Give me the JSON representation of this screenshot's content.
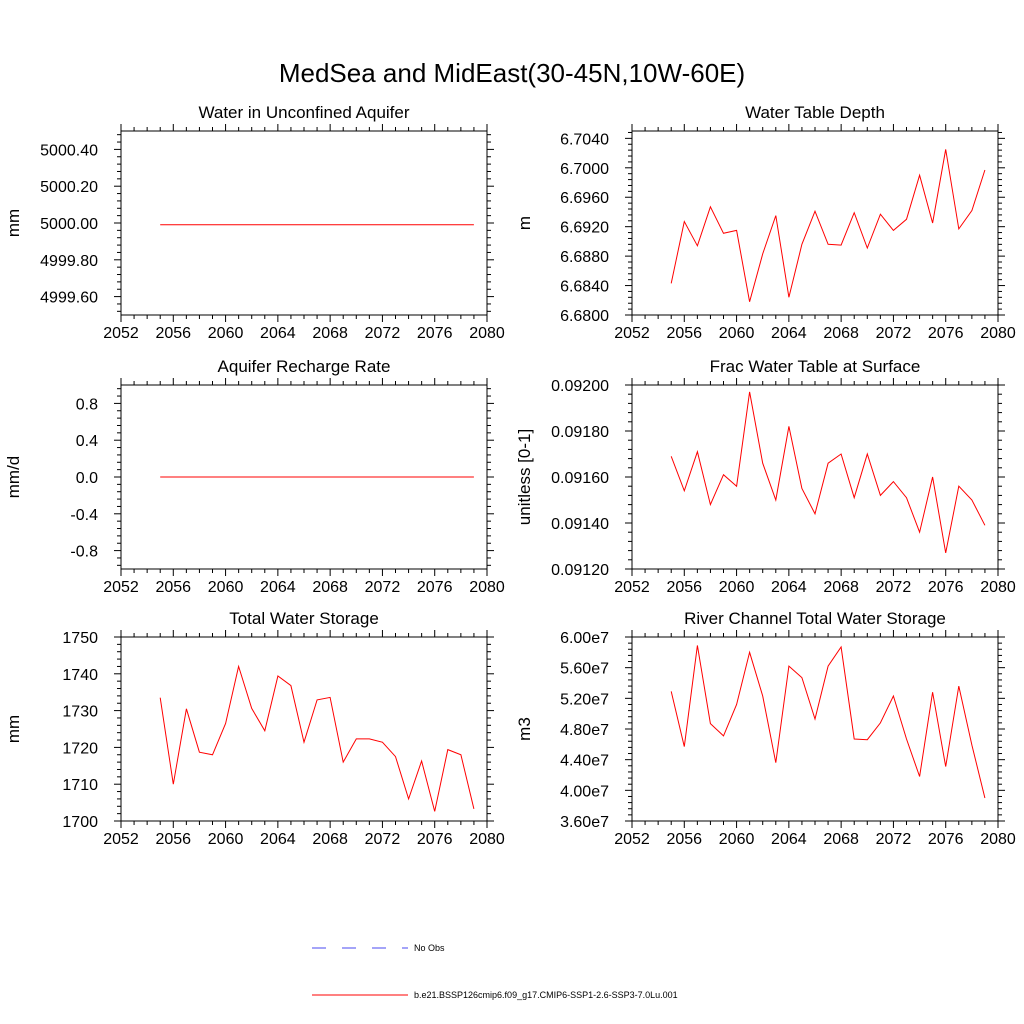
{
  "title": "MedSea and MidEast(30-45N,10W-60E)",
  "legend": [
    {
      "label": "No Obs",
      "color": "#4a4af0",
      "dash": true
    },
    {
      "label": "b.e21.BSSP126cmip6.f09_g17.CMIP6-SSP1-2.6-SSP3-7.0Lu.001",
      "color": "#ff0000",
      "dash": false
    }
  ],
  "chart_data": [
    {
      "type": "line",
      "title": "Water in Unconfined Aquifer",
      "ylabel": "mm",
      "xlim": [
        2052,
        2080
      ],
      "ylim": [
        4999.5,
        5000.5
      ],
      "xticks": [
        2052,
        2056,
        2060,
        2064,
        2068,
        2072,
        2076,
        2080
      ],
      "yticks": [
        "4999.60",
        "5000.40",
        "5000.20",
        "5000.00",
        "4999.80"
      ],
      "yticks_values": [
        4999.6,
        5000.4,
        5000.2,
        5000.0,
        4999.8
      ],
      "x": [
        2055,
        2056,
        2057,
        2058,
        2059,
        2060,
        2061,
        2062,
        2063,
        2064,
        2065,
        2066,
        2067,
        2068,
        2069,
        2070,
        2071,
        2072,
        2073,
        2074,
        2075,
        2076,
        2077,
        2078,
        2079
      ],
      "series": [
        {
          "values": [
            4999.99,
            4999.99,
            4999.99,
            4999.99,
            4999.99,
            4999.99,
            4999.99,
            4999.99,
            4999.99,
            4999.99,
            4999.99,
            4999.99,
            4999.99,
            4999.99,
            4999.99,
            4999.99,
            4999.99,
            4999.99,
            4999.99,
            4999.99,
            4999.99,
            4999.99,
            4999.99,
            4999.99,
            4999.99
          ]
        }
      ]
    },
    {
      "type": "line",
      "title": "Water Table Depth",
      "ylabel": "m",
      "xlim": [
        2052,
        2080
      ],
      "ylim": [
        6.68,
        6.705
      ],
      "xticks": [
        2052,
        2056,
        2060,
        2064,
        2068,
        2072,
        2076,
        2080
      ],
      "yticks": [
        "6.6800",
        "6.6840",
        "6.6880",
        "6.6920",
        "6.6960",
        "6.7000",
        "6.7040"
      ],
      "yticks_values": [
        6.68,
        6.684,
        6.688,
        6.692,
        6.696,
        6.7,
        6.704
      ],
      "x": [
        2055,
        2056,
        2057,
        2058,
        2059,
        2060,
        2061,
        2062,
        2063,
        2064,
        2065,
        2066,
        2067,
        2068,
        2069,
        2070,
        2071,
        2072,
        2073,
        2074,
        2075,
        2076,
        2077,
        2078,
        2079
      ],
      "series": [
        {
          "values": [
            6.6843,
            6.6927,
            6.6894,
            6.6947,
            6.6911,
            6.6915,
            6.6818,
            6.6883,
            6.6935,
            6.6824,
            6.6896,
            6.6941,
            6.6896,
            6.6895,
            6.6939,
            6.6891,
            6.6937,
            6.6915,
            6.693,
            6.699,
            6.6925,
            6.7025,
            6.6917,
            6.6942,
            6.6997
          ]
        }
      ]
    },
    {
      "type": "line",
      "title": "Aquifer Recharge Rate",
      "ylabel": "mm/d",
      "xlim": [
        2052,
        2080
      ],
      "ylim": [
        -1.0,
        1.0
      ],
      "xticks": [
        2052,
        2056,
        2060,
        2064,
        2068,
        2072,
        2076,
        2080
      ],
      "yticks": [
        "-0.8",
        "-0.4",
        "0.0",
        "0.4",
        "0.8"
      ],
      "yticks_values": [
        -0.8,
        -0.4,
        0.0,
        0.4,
        0.8
      ],
      "x": [
        2055,
        2056,
        2057,
        2058,
        2059,
        2060,
        2061,
        2062,
        2063,
        2064,
        2065,
        2066,
        2067,
        2068,
        2069,
        2070,
        2071,
        2072,
        2073,
        2074,
        2075,
        2076,
        2077,
        2078,
        2079
      ],
      "series": [
        {
          "values": [
            0,
            0,
            0,
            0,
            0,
            0,
            0,
            0,
            0,
            0,
            0,
            0,
            0,
            0,
            0,
            0,
            0,
            0,
            0,
            0,
            0,
            0,
            0,
            0,
            0
          ]
        }
      ]
    },
    {
      "type": "line",
      "title": "Frac Water Table at Surface",
      "ylabel": "unitless [0-1]",
      "xlim": [
        2052,
        2080
      ],
      "ylim": [
        0.0912,
        0.092
      ],
      "xticks": [
        2052,
        2056,
        2060,
        2064,
        2068,
        2072,
        2076,
        2080
      ],
      "yticks": [
        "0.09120",
        "0.09140",
        "0.09160",
        "0.09180",
        "0.09200"
      ],
      "yticks_values": [
        0.0912,
        0.0914,
        0.0916,
        0.0918,
        0.092
      ],
      "x": [
        2055,
        2056,
        2057,
        2058,
        2059,
        2060,
        2061,
        2062,
        2063,
        2064,
        2065,
        2066,
        2067,
        2068,
        2069,
        2070,
        2071,
        2072,
        2073,
        2074,
        2075,
        2076,
        2077,
        2078,
        2079
      ],
      "series": [
        {
          "values": [
            0.09169,
            0.09154,
            0.09171,
            0.09148,
            0.09161,
            0.09156,
            0.09197,
            0.09166,
            0.0915,
            0.09182,
            0.09155,
            0.09144,
            0.09166,
            0.0917,
            0.09151,
            0.0917,
            0.09152,
            0.09158,
            0.09151,
            0.09136,
            0.0916,
            0.09127,
            0.09156,
            0.0915,
            0.09139
          ]
        }
      ]
    },
    {
      "type": "line",
      "title": "Total Water Storage",
      "ylabel": "mm",
      "xlim": [
        2052,
        2080
      ],
      "ylim": [
        1700,
        1750
      ],
      "xticks": [
        2052,
        2056,
        2060,
        2064,
        2068,
        2072,
        2076,
        2080
      ],
      "yticks": [
        "1700",
        "1710",
        "1720",
        "1730",
        "1740",
        "1750"
      ],
      "yticks_values": [
        1700,
        1710,
        1720,
        1730,
        1740,
        1750
      ],
      "x": [
        2055,
        2056,
        2057,
        2058,
        2059,
        2060,
        2061,
        2062,
        2063,
        2064,
        2065,
        2066,
        2067,
        2068,
        2069,
        2070,
        2071,
        2072,
        2073,
        2074,
        2075,
        2076,
        2077,
        2078,
        2079
      ],
      "series": [
        {
          "values": [
            1733.5,
            1710.0,
            1730.5,
            1718.7,
            1718.0,
            1726.5,
            1742.0,
            1730.6,
            1724.5,
            1739.4,
            1736.8,
            1721.4,
            1732.9,
            1733.6,
            1716.0,
            1722.3,
            1722.3,
            1721.4,
            1717.5,
            1706.0,
            1716.3,
            1702.6,
            1719.4,
            1718.0,
            1703.3
          ]
        }
      ]
    },
    {
      "type": "line",
      "title": "River Channel Total Water Storage",
      "ylabel": "m3",
      "xlim": [
        2052,
        2080
      ],
      "ylim": [
        36000000,
        60000000
      ],
      "xticks": [
        2052,
        2056,
        2060,
        2064,
        2068,
        2072,
        2076,
        2080
      ],
      "yticks": [
        "3.60e7",
        "4.00e7",
        "4.40e7",
        "4.80e7",
        "5.20e7",
        "5.60e7",
        "6.00e7"
      ],
      "yticks_values": [
        36000000,
        40000000,
        44000000,
        48000000,
        52000000,
        56000000,
        60000000
      ],
      "x": [
        2055,
        2056,
        2057,
        2058,
        2059,
        2060,
        2061,
        2062,
        2063,
        2064,
        2065,
        2066,
        2067,
        2068,
        2069,
        2070,
        2071,
        2072,
        2073,
        2074,
        2075,
        2076,
        2077,
        2078,
        2079
      ],
      "series": [
        {
          "values": [
            52900000,
            45700000,
            58900000,
            48700000,
            47100000,
            51200000,
            58000000,
            52300000,
            43600000,
            56200000,
            54700000,
            49300000,
            56200000,
            58700000,
            46700000,
            46600000,
            48800000,
            52300000,
            46700000,
            41800000,
            52800000,
            43100000,
            53600000,
            45900000,
            39000000
          ]
        }
      ]
    }
  ]
}
